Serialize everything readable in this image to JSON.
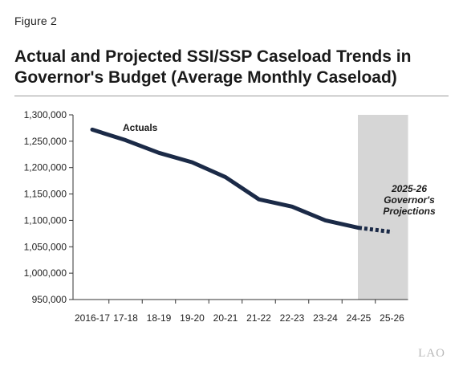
{
  "figure_label": "Figure 2",
  "title": "Actual and Projected SSI/SSP Caseload Trends in Governor's Budget (Average Monthly Caseload)",
  "logo_text": "LAO",
  "chart_data": {
    "type": "line",
    "categories": [
      "2016-17",
      "17-18",
      "18-19",
      "19-20",
      "20-21",
      "21-22",
      "22-23",
      "23-24",
      "24-25",
      "25-26"
    ],
    "series": [
      {
        "name": "Actuals",
        "values": [
          1272000,
          1252000,
          1228000,
          1210000,
          1182000,
          1140000,
          1126000,
          1100000,
          1086000,
          null
        ],
        "style": "solid"
      },
      {
        "name": "2025-26 Governor's Projections",
        "values": [
          null,
          null,
          null,
          null,
          null,
          null,
          null,
          null,
          1086000,
          1078000
        ],
        "style": "dashed"
      }
    ],
    "ylim": [
      950000,
      1300000
    ],
    "yticks": [
      950000,
      1000000,
      1050000,
      1100000,
      1150000,
      1200000,
      1250000,
      1300000
    ],
    "ytick_labels": [
      "950,000",
      "1,000,000",
      "1,050,000",
      "1,100,000",
      "1,150,000",
      "1,200,000",
      "1,250,000",
      "1,300,000"
    ],
    "shaded_range": [
      "24-25",
      "25-26"
    ],
    "annotations": {
      "actuals": "Actuals",
      "projection_lines": [
        "2025-26",
        "Governor's",
        "Projections"
      ]
    },
    "colors": {
      "line": "#1b2a47",
      "shade": "#d6d6d6",
      "axis": "#333333"
    },
    "grid": false
  }
}
